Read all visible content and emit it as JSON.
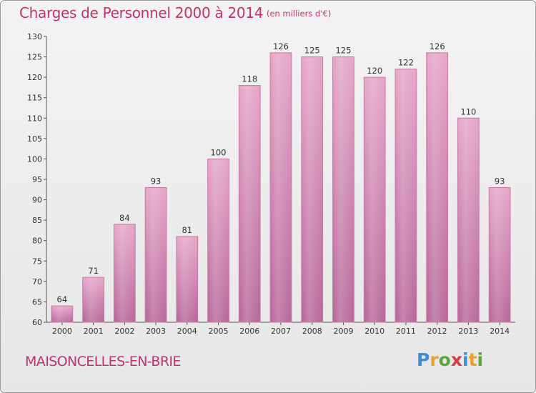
{
  "header": {
    "title": "Charges de Personnel 2000 à 2014",
    "subtitle": "(en milliers d'€)"
  },
  "footer": {
    "place": "MAISONCELLES-EN-BRIE",
    "brand": {
      "letters": [
        "P",
        "r",
        "o",
        "x",
        "i",
        "t",
        "i"
      ],
      "colors": [
        "#3a8fd6",
        "#e8a32a",
        "#5aa83c",
        "#d93a3a",
        "#3a8fd6",
        "#e8a32a",
        "#5aa83c"
      ]
    }
  },
  "chart_data": {
    "type": "bar",
    "title": "Charges de Personnel 2000 à 2014",
    "subtitle": "(en milliers d'€)",
    "categories": [
      "2000",
      "2001",
      "2002",
      "2003",
      "2004",
      "2005",
      "2006",
      "2007",
      "2008",
      "2009",
      "2010",
      "2011",
      "2012",
      "2013",
      "2014"
    ],
    "values": [
      64,
      71,
      84,
      93,
      81,
      100,
      118,
      126,
      125,
      125,
      120,
      122,
      126,
      110,
      93
    ],
    "ylim": [
      60,
      130
    ],
    "yticks": [
      60,
      65,
      70,
      75,
      80,
      85,
      90,
      95,
      100,
      105,
      110,
      115,
      120,
      125,
      130
    ],
    "grid": false,
    "bar_color": "#d98bb5",
    "text_color": "#c03370"
  }
}
